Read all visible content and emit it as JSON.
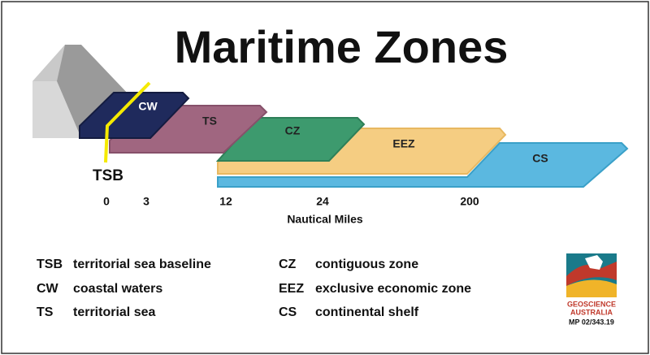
{
  "header": {
    "title": "Maritime Zones"
  },
  "zones": [
    {
      "label": "CW"
    },
    {
      "label": "TS"
    },
    {
      "label": "CZ"
    },
    {
      "label": "EEZ"
    },
    {
      "label": "CS"
    }
  ],
  "baseline_label": "TSB",
  "scale": {
    "ticks": [
      0,
      3,
      12,
      24,
      200
    ],
    "label": "Nautical Miles"
  },
  "legend": [
    {
      "abbr": "TSB",
      "text": "territorial sea baseline"
    },
    {
      "abbr": "CW",
      "text": "coastal waters"
    },
    {
      "abbr": "TS",
      "text": "territorial sea"
    },
    {
      "abbr": "CZ",
      "text": "contiguous zone"
    },
    {
      "abbr": "EEZ",
      "text": "exclusive economic zone"
    },
    {
      "abbr": "CS",
      "text": "continental shelf"
    }
  ],
  "logo": {
    "line1": "GEOSCIENCE",
    "line2": "AUSTRALIA",
    "code": "MP 02/343.19"
  }
}
